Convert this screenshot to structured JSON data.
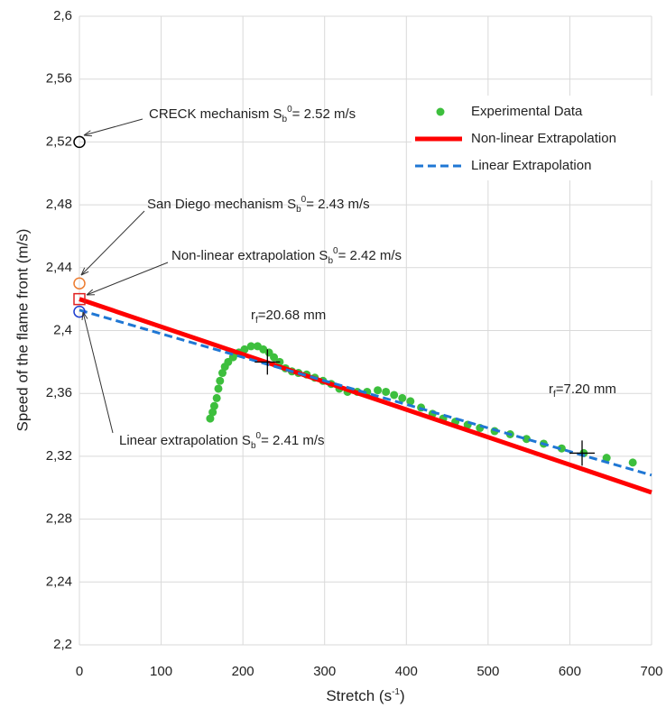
{
  "chart_data": {
    "type": "scatter",
    "y_label": "Speed of the flame front (m/s)",
    "x_label": {
      "text": "Stretch (s",
      "sup": "-1",
      "suffix": ")"
    },
    "xlim": [
      0,
      700
    ],
    "xticks": [
      0,
      100,
      200,
      300,
      400,
      500,
      600,
      700
    ],
    "ylim": [
      2.2,
      2.6
    ],
    "yticks": [
      {
        "value": 2.2,
        "label": "2,2"
      },
      {
        "value": 2.24,
        "label": "2,24"
      },
      {
        "value": 2.28,
        "label": "2,28"
      },
      {
        "value": 2.32,
        "label": "2,32"
      },
      {
        "value": 2.36,
        "label": "2,36"
      },
      {
        "value": 2.4,
        "label": "2,4"
      },
      {
        "value": 2.44,
        "label": "2,44"
      },
      {
        "value": 2.48,
        "label": "2,48"
      },
      {
        "value": 2.52,
        "label": "2,52"
      },
      {
        "value": 2.56,
        "label": "2,56"
      },
      {
        "value": 2.6,
        "label": "2,6"
      }
    ],
    "grid": true,
    "legend": "upper right",
    "series": [
      {
        "name": "Experimental Data",
        "color": "#3dbf3d",
        "kind": "points",
        "x": [
          160,
          163,
          165,
          168,
          170,
          172,
          175,
          178,
          182,
          188,
          195,
          202,
          210,
          218,
          225,
          232,
          238,
          245,
          252,
          260,
          268,
          278,
          288,
          298,
          308,
          318,
          328,
          340,
          352,
          365,
          375,
          385,
          395,
          405,
          418,
          432,
          445,
          460,
          475,
          490,
          508,
          527,
          547,
          568,
          590,
          617,
          645,
          677
        ],
        "values": [
          2.344,
          2.348,
          2.352,
          2.357,
          2.363,
          2.368,
          2.373,
          2.377,
          2.38,
          2.383,
          2.386,
          2.388,
          2.39,
          2.39,
          2.388,
          2.386,
          2.383,
          2.38,
          2.376,
          2.374,
          2.373,
          2.372,
          2.37,
          2.368,
          2.366,
          2.363,
          2.361,
          2.361,
          2.361,
          2.362,
          2.361,
          2.359,
          2.357,
          2.355,
          2.351,
          2.347,
          2.344,
          2.342,
          2.34,
          2.338,
          2.336,
          2.334,
          2.331,
          2.328,
          2.325,
          2.322,
          2.319,
          2.316
        ]
      },
      {
        "name": "Non-linear Extrapolation",
        "color": "#ff0000",
        "kind": "solid",
        "x": [
          0,
          700
        ],
        "values": [
          2.42,
          2.297
        ]
      },
      {
        "name": "Linear Extrapolation",
        "color": "#1f77d4",
        "kind": "dashed",
        "x": [
          0,
          700
        ],
        "values": [
          2.413,
          2.308
        ]
      }
    ],
    "reference_points": [
      {
        "prefix": "CRECK mechanism S",
        "sub": "b",
        "sup": "0",
        "suffix": "= 2.52 m/s",
        "x": 0,
        "y": 2.52,
        "color": "#000000",
        "shape": "circle"
      },
      {
        "prefix": "San Diego mechanism S",
        "sub": "b",
        "sup": "0",
        "suffix": "= 2.43 m/s",
        "x": 0,
        "y": 2.43,
        "color": "#ed7d31",
        "shape": "circle"
      },
      {
        "prefix": "Non-linear extrapolation S",
        "sub": "b",
        "sup": "0",
        "suffix": "= 2.42 m/s",
        "x": 0,
        "y": 2.42,
        "color": "#e02020",
        "shape": "square"
      },
      {
        "prefix": "Linear extrapolation S",
        "sub": "b",
        "sup": "0",
        "suffix": "= 2.41 m/s",
        "x": 0,
        "y": 2.412,
        "color": "#2040d0",
        "shape": "circle"
      }
    ],
    "radius_marks": [
      {
        "prefix": "r",
        "sub": "f",
        "suffix": "=20.68 mm",
        "x": 230,
        "y": 2.38
      },
      {
        "prefix": "r",
        "sub": "f",
        "suffix": "=7.20 mm",
        "x": 615,
        "y": 2.322
      }
    ]
  }
}
